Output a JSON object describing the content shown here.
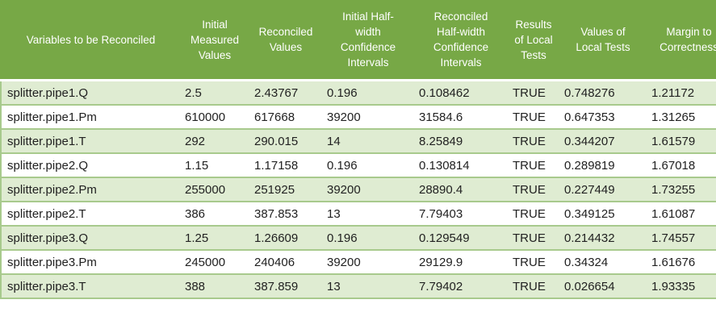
{
  "colors": {
    "header_bg": "#77A846",
    "header_text": "#FFFFFF",
    "band_bg": "#DFECD2",
    "grid": "#A8CA8D",
    "body_text": "#212121"
  },
  "table": {
    "columns": [
      {
        "label": "Variables to be Reconciled"
      },
      {
        "label": "Initial\nMeasured\nValues"
      },
      {
        "label": "Reconciled\nValues"
      },
      {
        "label": "Initial Half-\nwidth\nConfidence\nIntervals"
      },
      {
        "label": "Reconciled\nHalf-width\nConfidence\nIntervals"
      },
      {
        "label": "Results\nof Local\nTests"
      },
      {
        "label": "Values of\nLocal Tests"
      },
      {
        "label": "Margin to\nCorrectness"
      }
    ],
    "rows": [
      [
        "splitter.pipe1.Q",
        "2.5",
        "2.43767",
        "0.196",
        "0.108462",
        "TRUE",
        "0.748276",
        "1.21172"
      ],
      [
        "splitter.pipe1.Pm",
        "610000",
        "617668",
        "39200",
        "31584.6",
        "TRUE",
        "0.647353",
        "1.31265"
      ],
      [
        "splitter.pipe1.T",
        "292",
        "290.015",
        "14",
        "8.25849",
        "TRUE",
        "0.344207",
        "1.61579"
      ],
      [
        "splitter.pipe2.Q",
        "1.15",
        "1.17158",
        "0.196",
        "0.130814",
        "TRUE",
        "0.289819",
        "1.67018"
      ],
      [
        "splitter.pipe2.Pm",
        "255000",
        "251925",
        "39200",
        "28890.4",
        "TRUE",
        "0.227449",
        "1.73255"
      ],
      [
        "splitter.pipe2.T",
        "386",
        "387.853",
        "13",
        "7.79403",
        "TRUE",
        "0.349125",
        "1.61087"
      ],
      [
        "splitter.pipe3.Q",
        "1.25",
        "1.26609",
        "0.196",
        "0.129549",
        "TRUE",
        "0.214432",
        "1.74557"
      ],
      [
        "splitter.pipe3.Pm",
        "245000",
        "240406",
        "39200",
        "29129.9",
        "TRUE",
        "0.34324",
        "1.61676"
      ],
      [
        "splitter.pipe3.T",
        "388",
        "387.859",
        "13",
        "7.79402",
        "TRUE",
        "0.026654",
        "1.93335"
      ]
    ]
  }
}
